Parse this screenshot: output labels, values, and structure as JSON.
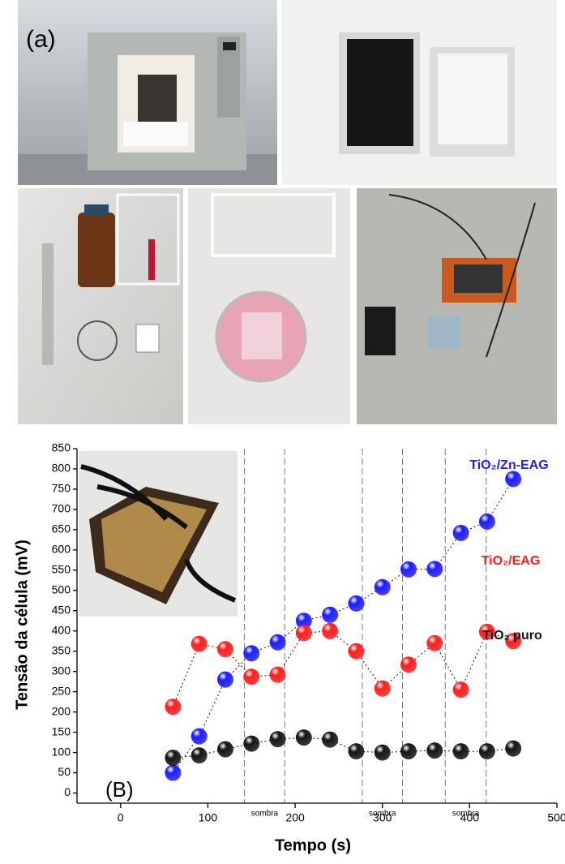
{
  "panel_label_a": "(a)",
  "chart_data": {
    "type": "scatter",
    "panel_label": "(B)",
    "x_label": "Tempo (s)",
    "y_label": "Tensão da célula (mV)",
    "xlim": [
      -50,
      500
    ],
    "xticks": [
      0,
      100,
      200,
      300,
      400,
      500
    ],
    "ylim": [
      -25,
      850
    ],
    "yticks": [
      0,
      50,
      100,
      150,
      200,
      250,
      300,
      350,
      400,
      450,
      500,
      550,
      600,
      650,
      700,
      750,
      800,
      850
    ],
    "grid": false,
    "x": [
      60,
      90,
      120,
      150,
      180,
      210,
      240,
      270,
      300,
      330,
      360,
      390,
      420,
      450
    ],
    "series": [
      {
        "name": "TiO₂/Zn-EAG",
        "color": "#1e1eff",
        "values": [
          50,
          140,
          280,
          345,
          372,
          425,
          440,
          468,
          508,
          552,
          553,
          642,
          670,
          775
        ]
      },
      {
        "name": "TiO₂/EAG",
        "color": "#ff1e1e",
        "values": [
          213,
          368,
          355,
          287,
          292,
          395,
          400,
          350,
          258,
          317,
          370,
          255,
          398,
          375
        ]
      },
      {
        "name": "TiO₂ puro",
        "color": "#151515",
        "values": [
          87,
          93,
          108,
          122,
          133,
          137,
          132,
          103,
          100,
          103,
          105,
          103,
          103,
          110
        ]
      }
    ],
    "annotations": [
      {
        "text": "sombra",
        "x": [
          142,
          188
        ]
      },
      {
        "text": "sombra",
        "x": [
          277,
          323
        ]
      },
      {
        "text": "sombra",
        "x": [
          372,
          419
        ]
      }
    ]
  }
}
